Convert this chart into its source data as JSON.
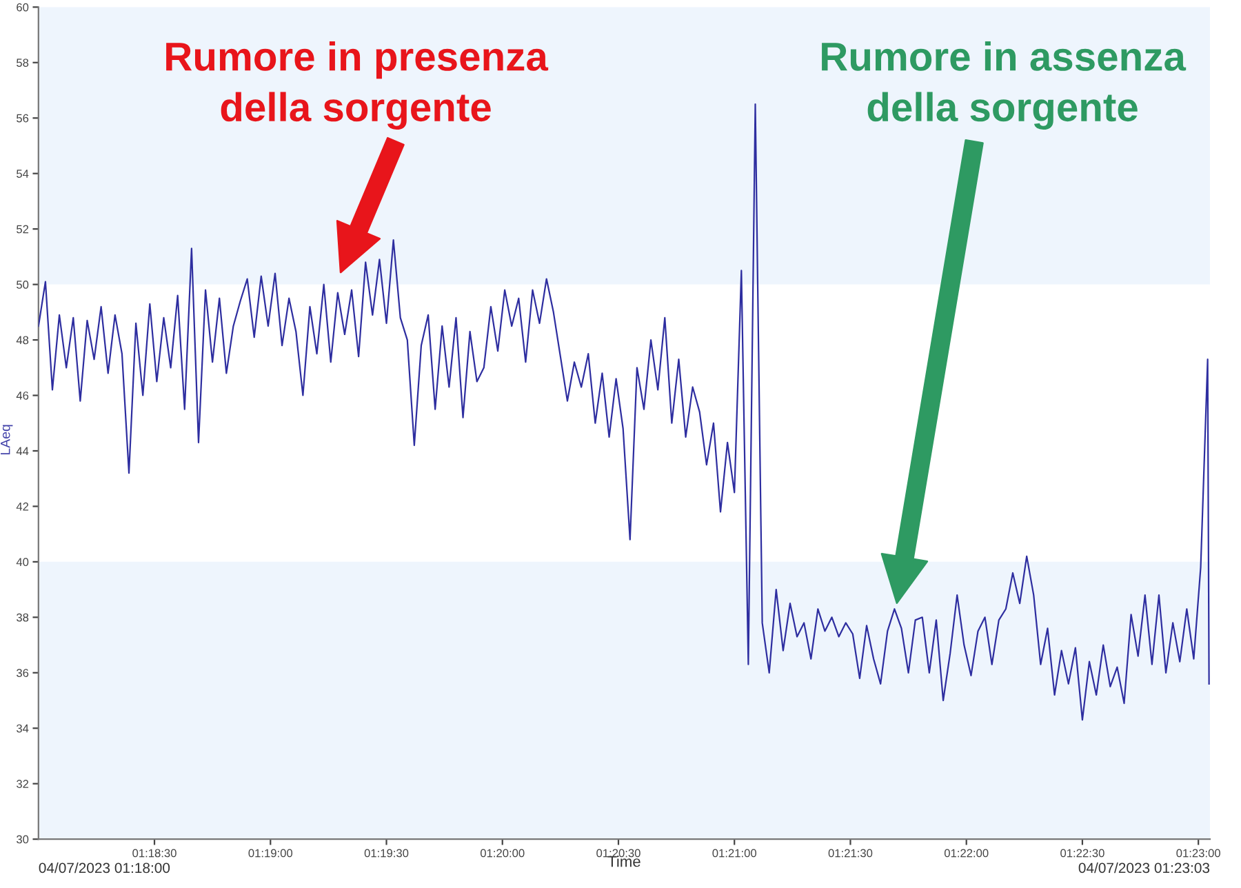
{
  "chart_data": {
    "type": "line",
    "xlabel": "Time",
    "ylabel": "LAeq",
    "xlim": [
      1.3,
      1.384167
    ],
    "ylim": [
      30,
      60
    ],
    "xticks": [
      {
        "value": 1.308333,
        "label": "01:18:30"
      },
      {
        "value": 1.316667,
        "label": "01:19:00"
      },
      {
        "value": 1.325,
        "label": "01:19:30"
      },
      {
        "value": 1.333333,
        "label": "01:20:00"
      },
      {
        "value": 1.341667,
        "label": "01:20:30"
      },
      {
        "value": 1.35,
        "label": "01:21:00"
      },
      {
        "value": 1.358333,
        "label": "01:21:30"
      },
      {
        "value": 1.366667,
        "label": "01:22:00"
      },
      {
        "value": 1.375,
        "label": "01:22:30"
      },
      {
        "value": 1.383333,
        "label": "01:23:00"
      }
    ],
    "yticks": [
      30,
      32,
      34,
      36,
      38,
      40,
      42,
      44,
      46,
      48,
      50,
      52,
      54,
      56,
      58,
      60
    ],
    "grid": false,
    "legend": false,
    "marker": "none",
    "line_style": "solid",
    "bands": [
      {
        "axis": "y",
        "from": 50,
        "to": 60,
        "color": "#eef5fd"
      },
      {
        "axis": "y",
        "from": 30,
        "to": 40,
        "color": "#eef5fd"
      }
    ],
    "annotations": [
      "Rumore in presenza\ndella sorgente",
      "Rumore in assenza\ndella sorgente",
      "04/07/2023 01:18:00",
      "04/07/2023 01:23:03"
    ],
    "series": [
      {
        "color": "#2e2ea0",
        "x": [
          1.3,
          1.3005,
          1.301,
          1.3015,
          1.302,
          1.3025,
          1.303,
          1.3035,
          1.304,
          1.3045,
          1.305,
          1.3055,
          1.306,
          1.3065,
          1.307,
          1.3075,
          1.308,
          1.3085,
          1.309,
          1.3095,
          1.31,
          1.3105,
          1.311,
          1.3115,
          1.312,
          1.3125,
          1.313,
          1.3135,
          1.314,
          1.3145,
          1.315,
          1.3155,
          1.316,
          1.3165,
          1.317,
          1.3175,
          1.318,
          1.3185,
          1.319,
          1.3195,
          1.32,
          1.3205,
          1.321,
          1.3215,
          1.322,
          1.3225,
          1.323,
          1.3235,
          1.324,
          1.3245,
          1.325,
          1.3255,
          1.326,
          1.3265,
          1.327,
          1.3275,
          1.328,
          1.3285,
          1.329,
          1.3295,
          1.33,
          1.3305,
          1.331,
          1.3315,
          1.332,
          1.3325,
          1.333,
          1.3335,
          1.334,
          1.3345,
          1.335,
          1.3355,
          1.336,
          1.3365,
          1.337,
          1.3375,
          1.338,
          1.3385,
          1.339,
          1.3395,
          1.34,
          1.3405,
          1.341,
          1.3415,
          1.342,
          1.3425,
          1.343,
          1.3435,
          1.344,
          1.3445,
          1.345,
          1.3455,
          1.346,
          1.3465,
          1.347,
          1.3475,
          1.348,
          1.3485,
          1.349,
          1.3495,
          1.35,
          1.3505,
          1.351,
          1.3515,
          1.352,
          1.3525,
          1.353,
          1.3535,
          1.354,
          1.3545,
          1.355,
          1.3555,
          1.356,
          1.3565,
          1.357,
          1.3575,
          1.358,
          1.3585,
          1.359,
          1.3595,
          1.36,
          1.3605,
          1.361,
          1.3615,
          1.362,
          1.3625,
          1.363,
          1.3635,
          1.364,
          1.3645,
          1.365,
          1.3655,
          1.366,
          1.3665,
          1.367,
          1.3675,
          1.368,
          1.3685,
          1.369,
          1.3695,
          1.37,
          1.3705,
          1.371,
          1.3715,
          1.372,
          1.3725,
          1.373,
          1.3735,
          1.374,
          1.3745,
          1.375,
          1.3755,
          1.376,
          1.3765,
          1.377,
          1.3775,
          1.378,
          1.3785,
          1.379,
          1.3795,
          1.38,
          1.3805,
          1.381,
          1.3815,
          1.382,
          1.3825,
          1.383,
          1.3835,
          1.384,
          1.3841
        ],
        "values": [
          48.5,
          50.1,
          46.2,
          48.9,
          47.0,
          48.8,
          45.8,
          48.7,
          47.3,
          49.2,
          46.8,
          48.9,
          47.5,
          43.2,
          48.6,
          46.0,
          49.3,
          46.5,
          48.8,
          47.0,
          49.6,
          45.5,
          51.3,
          44.3,
          49.8,
          47.2,
          49.5,
          46.8,
          48.5,
          49.4,
          50.2,
          48.1,
          50.3,
          48.5,
          50.4,
          47.8,
          49.5,
          48.3,
          46.0,
          49.2,
          47.5,
          50.0,
          47.2,
          49.7,
          48.2,
          49.8,
          47.4,
          50.8,
          48.9,
          50.9,
          48.6,
          51.6,
          48.8,
          48.0,
          44.2,
          47.8,
          48.9,
          45.5,
          48.5,
          46.3,
          48.8,
          45.2,
          48.3,
          46.5,
          47.0,
          49.2,
          47.6,
          49.8,
          48.5,
          49.5,
          47.2,
          49.8,
          48.6,
          50.2,
          49.0,
          47.4,
          45.8,
          47.2,
          46.3,
          47.5,
          45.0,
          46.8,
          44.5,
          46.6,
          44.8,
          40.8,
          47.0,
          45.5,
          48.0,
          46.2,
          48.8,
          45.0,
          47.3,
          44.5,
          46.3,
          45.4,
          43.5,
          45.0,
          41.8,
          44.3,
          42.5,
          50.5,
          36.3,
          56.5,
          37.8,
          36.0,
          39.0,
          36.8,
          38.5,
          37.3,
          37.8,
          36.5,
          38.3,
          37.5,
          38.0,
          37.3,
          37.8,
          37.4,
          35.8,
          37.7,
          36.5,
          35.6,
          37.5,
          38.3,
          37.6,
          36.0,
          37.9,
          38.0,
          36.0,
          37.9,
          35.0,
          36.7,
          38.8,
          37.0,
          35.9,
          37.5,
          38.0,
          36.3,
          37.9,
          38.3,
          39.6,
          38.5,
          40.2,
          38.8,
          36.3,
          37.6,
          35.2,
          36.8,
          35.6,
          36.9,
          34.3,
          36.4,
          35.2,
          37.0,
          35.5,
          36.2,
          34.9,
          38.1,
          36.6,
          38.8,
          36.3,
          38.8,
          36.0,
          37.8,
          36.4,
          38.3,
          36.5,
          39.8,
          47.3,
          35.6
        ]
      }
    ]
  }
}
